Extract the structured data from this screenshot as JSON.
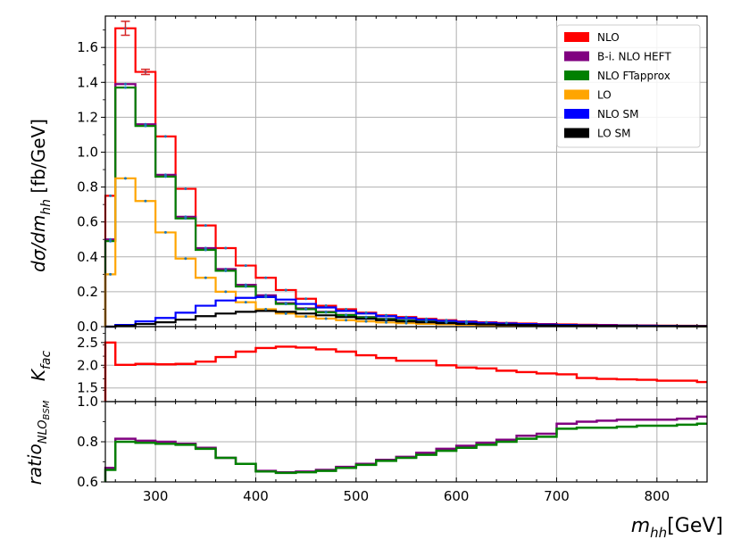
{
  "chart_data": [
    {
      "panel": "main",
      "type": "line",
      "step": true,
      "ylabel": "dσ/dm_hh [fb/GeV]",
      "ylim": [
        0,
        1.78
      ],
      "xlim": [
        250,
        850
      ],
      "yticks": [
        "0.0",
        "0.2",
        "0.4",
        "0.6",
        "0.8",
        "1.0",
        "1.2",
        "1.4",
        "1.6"
      ],
      "grid": true,
      "legend_placement": "top-right",
      "x_edges": [
        250,
        260,
        280,
        300,
        320,
        340,
        360,
        380,
        400,
        420,
        440,
        460,
        480,
        500,
        520,
        540,
        560,
        580,
        600,
        620,
        640,
        660,
        680,
        700,
        720,
        740,
        760,
        780,
        800,
        820,
        840,
        850
      ],
      "series": [
        {
          "name": "NLO",
          "color": "#ff0000",
          "values": [
            0.75,
            1.71,
            1.46,
            1.09,
            0.79,
            0.58,
            0.45,
            0.35,
            0.28,
            0.21,
            0.16,
            0.12,
            0.1,
            0.08,
            0.065,
            0.055,
            0.045,
            0.037,
            0.03,
            0.025,
            0.021,
            0.018,
            0.015,
            0.013,
            0.011,
            0.01,
            0.008,
            0.007,
            0.006,
            0.005,
            0.004
          ]
        },
        {
          "name": "B-i. NLO HEFT",
          "color": "#800080",
          "values": [
            0.5,
            1.39,
            1.16,
            0.87,
            0.63,
            0.45,
            0.33,
            0.24,
            0.18,
            0.135,
            0.105,
            0.085,
            0.068,
            0.055,
            0.045,
            0.037,
            0.03,
            0.025,
            0.021,
            0.018,
            0.015,
            0.012,
            0.01,
            0.009,
            0.008,
            0.007,
            0.006,
            0.005,
            0.004,
            0.004,
            0.003
          ]
        },
        {
          "name": "NLO FTapprox",
          "color": "#008000",
          "values": [
            0.49,
            1.37,
            1.15,
            0.86,
            0.62,
            0.44,
            0.32,
            0.23,
            0.17,
            0.13,
            0.1,
            0.082,
            0.066,
            0.053,
            0.043,
            0.035,
            0.029,
            0.024,
            0.02,
            0.017,
            0.014,
            0.011,
            0.009,
            0.008,
            0.007,
            0.006,
            0.005,
            0.004,
            0.004,
            0.003,
            0.003
          ]
        },
        {
          "name": "LO",
          "color": "#ffa500",
          "values": [
            0.3,
            0.85,
            0.72,
            0.54,
            0.39,
            0.28,
            0.2,
            0.14,
            0.1,
            0.075,
            0.058,
            0.046,
            0.037,
            0.03,
            0.024,
            0.02,
            0.016,
            0.013,
            0.011,
            0.009,
            0.008,
            0.007,
            0.006,
            0.005,
            0.004,
            0.004,
            0.003,
            0.003,
            0.003,
            0.002,
            0.002
          ]
        },
        {
          "name": "NLO SM",
          "color": "#0000ff",
          "values": [
            0.0,
            0.01,
            0.03,
            0.05,
            0.08,
            0.12,
            0.15,
            0.165,
            0.17,
            0.155,
            0.13,
            0.11,
            0.09,
            0.075,
            0.06,
            0.05,
            0.04,
            0.033,
            0.027,
            0.022,
            0.018,
            0.015,
            0.012,
            0.01,
            0.008,
            0.007,
            0.006,
            0.005,
            0.004,
            0.003,
            0.003
          ]
        },
        {
          "name": "LO SM",
          "color": "#000000",
          "values": [
            0.0,
            0.005,
            0.015,
            0.025,
            0.04,
            0.06,
            0.075,
            0.085,
            0.09,
            0.085,
            0.075,
            0.065,
            0.055,
            0.045,
            0.037,
            0.03,
            0.025,
            0.02,
            0.016,
            0.013,
            0.011,
            0.009,
            0.007,
            0.006,
            0.005,
            0.004,
            0.004,
            0.003,
            0.003,
            0.002,
            0.002
          ]
        }
      ]
    },
    {
      "panel": "kfactor",
      "type": "line",
      "step": true,
      "ylabel": "K_fac",
      "ylim": [
        1.2,
        2.85
      ],
      "yticks": [
        "1.5",
        "2.0",
        "2.5"
      ],
      "grid": true,
      "x_edges": [
        250,
        260,
        280,
        300,
        320,
        340,
        360,
        380,
        400,
        420,
        440,
        460,
        480,
        500,
        520,
        540,
        560,
        580,
        600,
        620,
        640,
        660,
        680,
        700,
        720,
        740,
        760,
        780,
        800,
        820,
        840,
        850
      ],
      "series": [
        {
          "name": "",
          "color": "#ff0000",
          "values": [
            2.5,
            2.01,
            2.03,
            2.02,
            2.03,
            2.08,
            2.18,
            2.3,
            2.38,
            2.41,
            2.39,
            2.35,
            2.3,
            2.22,
            2.16,
            2.1,
            2.1,
            2.0,
            1.95,
            1.93,
            1.88,
            1.85,
            1.82,
            1.8,
            1.72,
            1.7,
            1.69,
            1.68,
            1.66,
            1.66,
            1.63
          ]
        }
      ]
    },
    {
      "panel": "ratio",
      "type": "line",
      "step": true,
      "ylabel": "ratio_NLO_BSM",
      "ylim": [
        0.6,
        1.0
      ],
      "yticks": [
        "0.6",
        "0.8",
        "1.0"
      ],
      "xticks": [
        "300",
        "400",
        "500",
        "600",
        "700",
        "800"
      ],
      "xlabel": "m_hh[GeV]",
      "grid": true,
      "x_edges": [
        250,
        260,
        280,
        300,
        320,
        340,
        360,
        380,
        400,
        420,
        440,
        460,
        480,
        500,
        520,
        540,
        560,
        580,
        600,
        620,
        640,
        660,
        680,
        700,
        720,
        740,
        760,
        780,
        800,
        820,
        840,
        850
      ],
      "series": [
        {
          "name": "",
          "color": "#800080",
          "values": [
            0.67,
            0.815,
            0.805,
            0.8,
            0.79,
            0.77,
            0.72,
            0.69,
            0.655,
            0.648,
            0.652,
            0.66,
            0.675,
            0.69,
            0.71,
            0.725,
            0.745,
            0.765,
            0.78,
            0.795,
            0.81,
            0.83,
            0.84,
            0.89,
            0.9,
            0.905,
            0.91,
            0.91,
            0.91,
            0.915,
            0.925
          ]
        },
        {
          "name": "",
          "color": "#008000",
          "values": [
            0.66,
            0.8,
            0.795,
            0.79,
            0.785,
            0.765,
            0.72,
            0.69,
            0.652,
            0.645,
            0.648,
            0.655,
            0.67,
            0.685,
            0.705,
            0.72,
            0.735,
            0.755,
            0.77,
            0.785,
            0.8,
            0.815,
            0.825,
            0.865,
            0.87,
            0.87,
            0.875,
            0.88,
            0.88,
            0.885,
            0.89
          ]
        }
      ]
    }
  ],
  "labels": {
    "ylabel_main_base": "dσ/dm",
    "ylabel_main_sub": "hh",
    "ylabel_main_unit": " [fb/GeV]",
    "ylabel_k_base": "K",
    "ylabel_k_sub": "fac",
    "ylabel_ratio_base": "ratio",
    "ylabel_ratio_sub": "NLO",
    "ylabel_ratio_subsub": "BSM",
    "xlabel_base": "m",
    "xlabel_sub": "hh",
    "xlabel_unit": "[GeV]"
  }
}
